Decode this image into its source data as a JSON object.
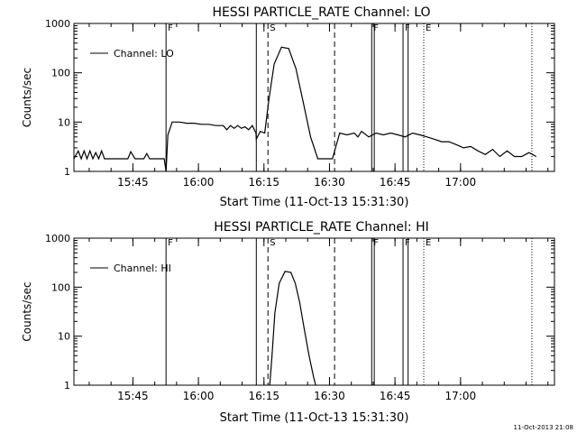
{
  "footer": {
    "timestamp": "11-Oct-2013 21:08"
  },
  "chart_data": [
    {
      "type": "line",
      "title": "HESSI PARTICLE_RATE Channel: LO",
      "xlabel": "Start Time (11-Oct-13 15:31:30)",
      "ylabel": "Counts/sec",
      "yscale": "log",
      "ylim": [
        1,
        1000
      ],
      "xlim": [
        0,
        6600
      ],
      "x_unit": "seconds since 11-Oct-13 15:31:30",
      "yticks": [
        {
          "v": 1,
          "label": "1"
        },
        {
          "v": 10,
          "label": "10"
        },
        {
          "v": 100,
          "label": "100"
        },
        {
          "v": 1000,
          "label": "1000"
        }
      ],
      "xticks": [
        {
          "v": 810,
          "label": "15:45"
        },
        {
          "v": 1710,
          "label": "16:00"
        },
        {
          "v": 2610,
          "label": "16:15"
        },
        {
          "v": 3510,
          "label": "16:30"
        },
        {
          "v": 4410,
          "label": "16:45"
        },
        {
          "v": 5310,
          "label": "17:00"
        }
      ],
      "legend": {
        "position": "top-left",
        "entry": "Channel: LO"
      },
      "markers": [
        {
          "x": 1265,
          "style": "solid",
          "label": "F"
        },
        {
          "x": 2505,
          "style": "solid",
          "label": ""
        },
        {
          "x": 2665,
          "style": "dashed",
          "label": "S"
        },
        {
          "x": 3580,
          "style": "dashed",
          "label": ""
        },
        {
          "x": 4090,
          "style": "solid",
          "label": "F"
        },
        {
          "x": 4125,
          "style": "solid",
          "label": ""
        },
        {
          "x": 4520,
          "style": "solid",
          "label": "F"
        },
        {
          "x": 4590,
          "style": "solid",
          "label": ""
        },
        {
          "x": 4805,
          "style": "dotted",
          "label": "E"
        },
        {
          "x": 6290,
          "style": "dotted",
          "label": ""
        }
      ],
      "series": [
        {
          "x": [
            0,
            60,
            100,
            140,
            180,
            220,
            260,
            300,
            340,
            380,
            420,
            460,
            500,
            560,
            640,
            700,
            740,
            780,
            840,
            900,
            960,
            1000,
            1040,
            1100,
            1150,
            1200,
            1240,
            1265,
            1290,
            1350,
            1450,
            1550,
            1650,
            1750,
            1850,
            1950,
            2050,
            2100,
            2150,
            2200,
            2250,
            2300,
            2350,
            2400,
            2450,
            2500,
            2505,
            2560,
            2620,
            2680,
            2750,
            2850,
            2950,
            3050,
            3150,
            3250,
            3350,
            3450,
            3550,
            3650,
            3750,
            3850,
            3900,
            3950,
            4050,
            4150,
            4250,
            4350,
            4450,
            4550,
            4650,
            4750,
            4850,
            4950,
            5050,
            5150,
            5250,
            5350,
            5450,
            5550,
            5650,
            5750,
            5850,
            5950,
            6050,
            6150,
            6250,
            6350
          ],
          "y": [
            1.8,
            2.6,
            1.8,
            2.6,
            1.8,
            2.6,
            1.8,
            2.4,
            1.8,
            2.6,
            1.8,
            1.8,
            1.8,
            1.8,
            1.8,
            1.8,
            1.8,
            2.5,
            1.8,
            1.8,
            1.8,
            2.3,
            1.8,
            1.8,
            1.8,
            1.8,
            1.8,
            1.0,
            5.5,
            10.0,
            10.0,
            9.5,
            9.5,
            9.0,
            9.0,
            8.5,
            8.5,
            7.0,
            8.5,
            7.5,
            8.5,
            7.5,
            8.0,
            7.0,
            8.5,
            6.0,
            4.5,
            6.5,
            6.0,
            30.0,
            150.0,
            330.0,
            310.0,
            120.0,
            25.0,
            5.0,
            1.8,
            1.8,
            1.8,
            6.0,
            5.5,
            6.0,
            5.0,
            6.5,
            5.0,
            6.0,
            5.5,
            6.0,
            5.5,
            5.0,
            6.0,
            5.5,
            5.0,
            4.5,
            4.0,
            4.0,
            3.5,
            3.0,
            3.2,
            2.6,
            2.2,
            2.8,
            2.0,
            2.6,
            2.0,
            2.0,
            2.4,
            2.0
          ]
        }
      ]
    },
    {
      "type": "line",
      "title": "HESSI PARTICLE_RATE Channel: HI",
      "xlabel": "Start Time (11-Oct-13 15:31:30)",
      "ylabel": "Counts/sec",
      "yscale": "log",
      "ylim": [
        1,
        1000
      ],
      "xlim": [
        0,
        6600
      ],
      "x_unit": "seconds since 11-Oct-13 15:31:30",
      "yticks": [
        {
          "v": 1,
          "label": "1"
        },
        {
          "v": 10,
          "label": "10"
        },
        {
          "v": 100,
          "label": "100"
        },
        {
          "v": 1000,
          "label": "1000"
        }
      ],
      "xticks": [
        {
          "v": 810,
          "label": "15:45"
        },
        {
          "v": 1710,
          "label": "16:00"
        },
        {
          "v": 2610,
          "label": "16:15"
        },
        {
          "v": 3510,
          "label": "16:30"
        },
        {
          "v": 4410,
          "label": "16:45"
        },
        {
          "v": 5310,
          "label": "17:00"
        }
      ],
      "legend": {
        "position": "top-left",
        "entry": "Channel: HI"
      },
      "markers": [
        {
          "x": 1265,
          "style": "solid",
          "label": "F"
        },
        {
          "x": 2505,
          "style": "solid",
          "label": ""
        },
        {
          "x": 2665,
          "style": "dashed",
          "label": "S"
        },
        {
          "x": 3580,
          "style": "dashed",
          "label": ""
        },
        {
          "x": 4090,
          "style": "solid",
          "label": "F"
        },
        {
          "x": 4125,
          "style": "solid",
          "label": ""
        },
        {
          "x": 4520,
          "style": "solid",
          "label": "F"
        },
        {
          "x": 4590,
          "style": "solid",
          "label": ""
        },
        {
          "x": 4805,
          "style": "dotted",
          "label": "E"
        },
        {
          "x": 6290,
          "style": "dotted",
          "label": ""
        }
      ],
      "series": [
        {
          "x": [
            2690,
            2720,
            2760,
            2820,
            2900,
            2980,
            3040,
            3100,
            3160,
            3230,
            3290,
            3320
          ],
          "y": [
            1.0,
            4.0,
            30.0,
            120.0,
            210.0,
            200.0,
            120.0,
            50.0,
            15.0,
            4.0,
            1.5,
            1.0
          ]
        }
      ]
    }
  ]
}
